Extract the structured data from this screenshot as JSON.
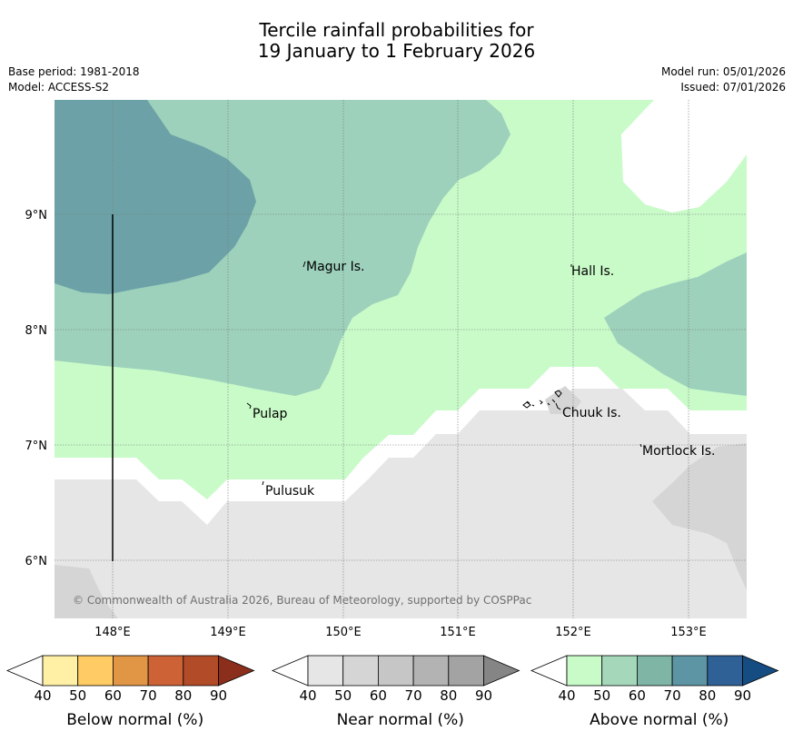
{
  "title": {
    "line1": "Tercile rainfall probabilities for",
    "line2": "19 January to 1 February 2026"
  },
  "info": {
    "base_period": "Base period: 1981-2018",
    "model": "Model: ACCESS-S2",
    "model_run": "Model run: 05/01/2026",
    "issued": "Issued: 07/01/2026"
  },
  "map": {
    "lat_ticks": [
      "9°N",
      "8°N",
      "7°N",
      "6°N"
    ],
    "lon_ticks": [
      "148°E",
      "149°E",
      "150°E",
      "151°E",
      "152°E",
      "153°E"
    ],
    "places": [
      {
        "name": "Magur Is."
      },
      {
        "name": "Hall Is."
      },
      {
        "name": "Pulap"
      },
      {
        "name": "Chuuk Is."
      },
      {
        "name": "Mortlock Is."
      },
      {
        "name": "Pulusuk"
      }
    ],
    "copyright": "© Commonwealth of Australia 2026, Bureau of Meteorology, supported by COSPPac"
  },
  "legend": {
    "ticks": [
      "40",
      "50",
      "60",
      "70",
      "80",
      "90"
    ],
    "bars": [
      {
        "title": "Below normal (%)",
        "colors": [
          "#fff0a6",
          "#fecb65",
          "#e19645",
          "#cc6235",
          "#b24b27",
          "#8b2f1c"
        ]
      },
      {
        "title": "Near normal (%)",
        "colors": [
          "#e6e6e6",
          "#d5d5d5",
          "#c6c6c6",
          "#b3b3b3",
          "#a3a3a3",
          "#858585"
        ]
      },
      {
        "title": "Above normal (%)",
        "colors": [
          "#c9fbc9",
          "#a5d8bb",
          "#7fb5a5",
          "#5d95a5",
          "#2f6197",
          "#154d82"
        ]
      }
    ]
  },
  "colors": {
    "above_40": "#c9fbc9",
    "above_50": "#9dd1bb",
    "above_60": "#6ca2a7",
    "near_40": "#e6e6e6",
    "near_50": "#d5d5d5"
  }
}
